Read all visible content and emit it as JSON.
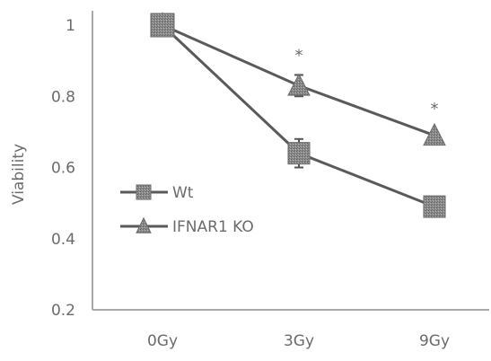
{
  "chart_data": {
    "type": "line",
    "title": "",
    "xlabel": "",
    "ylabel": "Viability",
    "categories": [
      "0Gy",
      "3Gy",
      "9Gy"
    ],
    "ylim": [
      0.2,
      1.0
    ],
    "yticks": [
      {
        "value": 0.2,
        "label": "0.2"
      },
      {
        "value": 0.4,
        "label": "0.4"
      },
      {
        "value": 0.6,
        "label": "0.6"
      },
      {
        "value": 0.8,
        "label": "0.8"
      },
      {
        "value": 1.0,
        "label": "1"
      }
    ],
    "grid": false,
    "legend_position": "left-center",
    "series": [
      {
        "name": "Wt",
        "marker": "square",
        "values": [
          1.0,
          0.64,
          0.49
        ],
        "errors": [
          0,
          0.04,
          0
        ],
        "color": "#7a7a7a"
      },
      {
        "name": "IFNAR1 KO",
        "marker": "triangle",
        "values": [
          1.0,
          0.83,
          0.69
        ],
        "errors": [
          0,
          0.03,
          0
        ],
        "color": "#7a7a7a"
      }
    ],
    "annotations": [
      {
        "category": "3Gy",
        "value": 0.92,
        "text": "*"
      },
      {
        "category": "9Gy",
        "value": 0.77,
        "text": "*"
      }
    ]
  }
}
